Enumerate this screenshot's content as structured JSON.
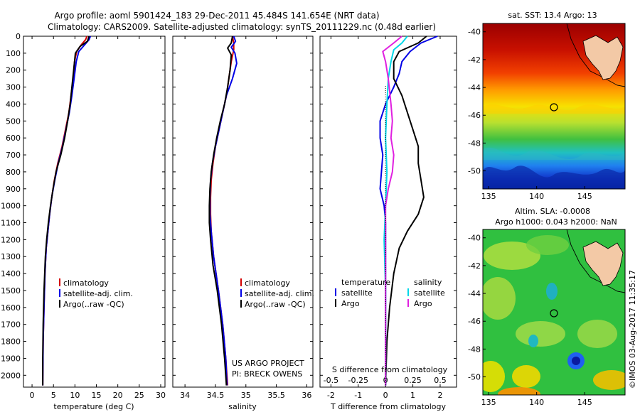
{
  "header": {
    "title_line1": "Argo profile: aoml 5901424_183 29-Dec-2011 45.484S 141.654E (NRT data)",
    "title_line2": "Climatology: CARS2009. Satellite-adjusted climatology: synTS_20111229.nc (0.48d earlier)"
  },
  "map_top": {
    "title": "sat. SST: 13.4 Argo: 13",
    "xticks": [
      "135",
      "140",
      "145"
    ],
    "yticks": [
      "-40",
      "-42",
      "-44",
      "-46",
      "-48",
      "-50"
    ]
  },
  "map_bottom": {
    "title_line1": "Altim. SLA: -0.0008",
    "title_line2": "Argo h1000: 0.043 h2000: NaN",
    "xticks": [
      "135",
      "140",
      "145"
    ],
    "yticks": [
      "-40",
      "-42",
      "-44",
      "-46",
      "-48",
      "-50"
    ]
  },
  "side_label": "©IMOS 03-Aug-2017 11:35:17",
  "project_note": {
    "line1": "US ARGO PROJECT",
    "line2": "PI: BRECK OWENS"
  },
  "colors": {
    "climatology": "#d40000",
    "satellite": "#0000e6",
    "argo": "#000000",
    "sal_satellite": "#00d8e8",
    "sal_argo": "#e020e0"
  },
  "chart_data": [
    {
      "type": "line",
      "xlabel": "temperature (deg C)",
      "ylabel": "",
      "xlim": [
        -2,
        31
      ],
      "ylim": [
        2070,
        0
      ],
      "xticks": [
        "0",
        "5",
        "10",
        "15",
        "20",
        "25",
        "30"
      ],
      "yticks": [
        "0",
        "100",
        "200",
        "300",
        "400",
        "500",
        "600",
        "700",
        "800",
        "900",
        "1000",
        "1100",
        "1200",
        "1300",
        "1400",
        "1500",
        "1600",
        "1700",
        "1800",
        "1900",
        "2000"
      ],
      "legend": [
        "climatology",
        "satellite-adj. clim.",
        "Argo(..raw -QC)"
      ],
      "series": [
        {
          "name": "climatology",
          "color": "#d40000",
          "points": [
            [
              12.8,
              0
            ],
            [
              12.5,
              20
            ],
            [
              11.5,
              50
            ],
            [
              10.4,
              90
            ],
            [
              9.9,
              150
            ],
            [
              9.6,
              250
            ],
            [
              9.1,
              350
            ],
            [
              8.6,
              450
            ],
            [
              7.8,
              550
            ],
            [
              7.0,
              650
            ],
            [
              6.0,
              750
            ],
            [
              5.2,
              850
            ],
            [
              4.6,
              950
            ],
            [
              4.1,
              1050
            ],
            [
              3.7,
              1150
            ],
            [
              3.3,
              1250
            ],
            [
              3.0,
              1400
            ],
            [
              2.8,
              1600
            ],
            [
              2.6,
              1800
            ],
            [
              2.5,
              2060
            ]
          ]
        },
        {
          "name": "satellite-adj. clim.",
          "color": "#0000e6",
          "points": [
            [
              13.6,
              0
            ],
            [
              13.3,
              20
            ],
            [
              12.3,
              50
            ],
            [
              10.9,
              90
            ],
            [
              10.3,
              150
            ],
            [
              9.8,
              250
            ],
            [
              9.3,
              350
            ],
            [
              8.7,
              450
            ],
            [
              7.9,
              550
            ],
            [
              7.1,
              650
            ],
            [
              6.1,
              750
            ],
            [
              5.3,
              850
            ],
            [
              4.6,
              950
            ],
            [
              4.1,
              1050
            ],
            [
              3.7,
              1150
            ],
            [
              3.3,
              1250
            ],
            [
              3.0,
              1400
            ],
            [
              2.8,
              1600
            ],
            [
              2.6,
              1800
            ],
            [
              2.5,
              2060
            ]
          ]
        },
        {
          "name": "Argo(..raw -QC)",
          "color": "#000000",
          "points": [
            [
              13.3,
              0
            ],
            [
              12.9,
              30
            ],
            [
              11.2,
              60
            ],
            [
              10.1,
              100
            ],
            [
              9.7,
              200
            ],
            [
              9.3,
              300
            ],
            [
              8.9,
              400
            ],
            [
              8.3,
              500
            ],
            [
              7.6,
              600
            ],
            [
              6.7,
              700
            ],
            [
              5.6,
              800
            ],
            [
              4.9,
              900
            ],
            [
              4.3,
              1000
            ],
            [
              3.8,
              1100
            ],
            [
              3.4,
              1200
            ],
            [
              3.1,
              1300
            ],
            [
              2.8,
              1500
            ],
            [
              2.6,
              1700
            ],
            [
              2.5,
              1900
            ],
            [
              2.5,
              2060
            ]
          ]
        }
      ]
    },
    {
      "type": "line",
      "xlabel": "salinity",
      "xlim": [
        33.8,
        36.1
      ],
      "ylim": [
        2070,
        0
      ],
      "xticks": [
        "34",
        "34.5",
        "35",
        "35.5",
        "36"
      ],
      "legend": [
        "climatology",
        "satellite-adj. clim.",
        "Argo(..raw -QC)"
      ],
      "series": [
        {
          "name": "climatology",
          "color": "#d40000",
          "points": [
            [
              34.78,
              0
            ],
            [
              34.8,
              40
            ],
            [
              34.8,
              80
            ],
            [
              34.76,
              150
            ],
            [
              34.72,
              250
            ],
            [
              34.68,
              350
            ],
            [
              34.62,
              450
            ],
            [
              34.56,
              550
            ],
            [
              34.5,
              650
            ],
            [
              34.46,
              750
            ],
            [
              34.43,
              850
            ],
            [
              34.42,
              950
            ],
            [
              34.42,
              1050
            ],
            [
              34.43,
              1150
            ],
            [
              34.47,
              1300
            ],
            [
              34.55,
              1500
            ],
            [
              34.62,
              1700
            ],
            [
              34.67,
              1900
            ],
            [
              34.7,
              2060
            ]
          ]
        },
        {
          "name": "satellite-adj. clim.",
          "color": "#0000e6",
          "points": [
            [
              34.8,
              0
            ],
            [
              34.83,
              30
            ],
            [
              34.76,
              65
            ],
            [
              34.82,
              100
            ],
            [
              34.85,
              160
            ],
            [
              34.78,
              250
            ],
            [
              34.68,
              350
            ],
            [
              34.62,
              450
            ],
            [
              34.56,
              550
            ],
            [
              34.5,
              650
            ],
            [
              34.45,
              750
            ],
            [
              34.42,
              850
            ],
            [
              34.41,
              950
            ],
            [
              34.41,
              1050
            ],
            [
              34.43,
              1150
            ],
            [
              34.47,
              1300
            ],
            [
              34.55,
              1500
            ],
            [
              34.62,
              1700
            ],
            [
              34.67,
              1900
            ],
            [
              34.69,
              2060
            ]
          ]
        },
        {
          "name": "Argo(..raw -QC)",
          "color": "#000000",
          "points": [
            [
              34.78,
              0
            ],
            [
              34.76,
              40
            ],
            [
              34.7,
              70
            ],
            [
              34.76,
              110
            ],
            [
              34.74,
              200
            ],
            [
              34.7,
              300
            ],
            [
              34.65,
              400
            ],
            [
              34.58,
              500
            ],
            [
              34.52,
              600
            ],
            [
              34.47,
              700
            ],
            [
              34.43,
              800
            ],
            [
              34.41,
              900
            ],
            [
              34.4,
              1000
            ],
            [
              34.4,
              1100
            ],
            [
              34.42,
              1200
            ],
            [
              34.46,
              1350
            ],
            [
              34.53,
              1500
            ],
            [
              34.6,
              1700
            ],
            [
              34.65,
              1900
            ],
            [
              34.68,
              2060
            ]
          ]
        }
      ]
    },
    {
      "type": "line",
      "xlabel": "T difference from climatology",
      "top_label": "S difference from climatology",
      "xlim": [
        -2.4,
        2.6
      ],
      "ylim": [
        2070,
        0
      ],
      "xticks": [
        "-2",
        "-1",
        "0",
        "1",
        "2"
      ],
      "top_ticks": [
        "-0.5",
        "-0.25",
        "0",
        "0.25",
        "0.5"
      ],
      "legend_temperature": {
        "title": "temperature",
        "items": [
          "satellite",
          "Argo"
        ]
      },
      "legend_salinity": {
        "title": "salinity",
        "items": [
          "satellite",
          "Argo"
        ]
      },
      "series": [
        {
          "name": "temperature satellite",
          "color": "#0000e6",
          "points": [
            [
              1.9,
              0
            ],
            [
              1.3,
              40
            ],
            [
              0.9,
              90
            ],
            [
              0.6,
              150
            ],
            [
              0.5,
              220
            ],
            [
              0.3,
              300
            ],
            [
              0.0,
              400
            ],
            [
              -0.2,
              500
            ],
            [
              -0.2,
              600
            ],
            [
              -0.1,
              700
            ],
            [
              -0.15,
              800
            ],
            [
              -0.2,
              900
            ],
            [
              -0.05,
              1000
            ],
            [
              0.0,
              1100
            ],
            [
              0.0,
              1500
            ],
            [
              0.0,
              2060
            ]
          ]
        },
        {
          "name": "temperature Argo",
          "color": "#000000",
          "points": [
            [
              1.5,
              0
            ],
            [
              1.2,
              40
            ],
            [
              0.5,
              90
            ],
            [
              0.3,
              150
            ],
            [
              0.3,
              250
            ],
            [
              0.6,
              350
            ],
            [
              0.8,
              450
            ],
            [
              1.0,
              550
            ],
            [
              1.2,
              650
            ],
            [
              1.2,
              750
            ],
            [
              1.3,
              850
            ],
            [
              1.4,
              950
            ],
            [
              1.2,
              1050
            ],
            [
              0.8,
              1150
            ],
            [
              0.5,
              1250
            ],
            [
              0.3,
              1400
            ],
            [
              0.15,
              1600
            ],
            [
              0.05,
              1800
            ],
            [
              0.0,
              2060
            ]
          ]
        },
        {
          "name": "salinity satellite",
          "color": "#00d8e8",
          "points": [
            [
              0.8,
              0
            ],
            [
              0.6,
              40
            ],
            [
              0.3,
              80
            ],
            [
              0.2,
              150
            ],
            [
              0.1,
              250
            ],
            [
              0.05,
              400
            ],
            [
              0.0,
              600
            ],
            [
              0.05,
              800
            ],
            [
              0.0,
              1000
            ],
            [
              -0.05,
              1200
            ],
            [
              0.0,
              1500
            ],
            [
              0.0,
              1800
            ],
            [
              0.0,
              2060
            ]
          ]
        },
        {
          "name": "salinity Argo",
          "color": "#e020e0",
          "points": [
            [
              0.6,
              0
            ],
            [
              0.3,
              40
            ],
            [
              -0.1,
              90
            ],
            [
              0.0,
              150
            ],
            [
              0.1,
              250
            ],
            [
              0.2,
              400
            ],
            [
              0.25,
              500
            ],
            [
              0.2,
              600
            ],
            [
              0.3,
              700
            ],
            [
              0.25,
              800
            ],
            [
              0.1,
              900
            ],
            [
              0.0,
              1000
            ],
            [
              0.0,
              1200
            ],
            [
              0.0,
              1500
            ],
            [
              0.0,
              1800
            ],
            [
              0.0,
              2060
            ]
          ]
        }
      ]
    }
  ]
}
